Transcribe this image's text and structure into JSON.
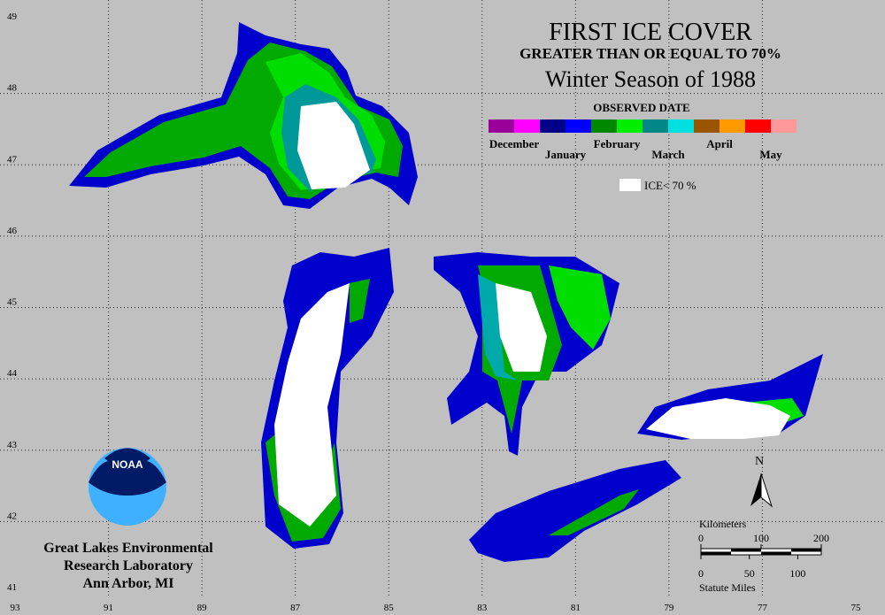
{
  "title": "FIRST ICE COVER",
  "subtitle": "GREATER THAN OR EQUAL TO 70%",
  "season": "Winter Season of 1988",
  "legend": {
    "title": "OBSERVED DATE",
    "months": [
      {
        "name": "December",
        "colors": [
          "#990099",
          "#ff00ff"
        ]
      },
      {
        "name": "January",
        "colors": [
          "#000088",
          "#0000ff"
        ]
      },
      {
        "name": "February",
        "colors": [
          "#008800",
          "#00ee00"
        ]
      },
      {
        "name": "March",
        "colors": [
          "#008888",
          "#00e0e0"
        ]
      },
      {
        "name": "April",
        "colors": [
          "#995500",
          "#ff9900"
        ]
      },
      {
        "name": "May",
        "colors": [
          "#ff0000",
          "#ff9999"
        ]
      }
    ],
    "ice_label": "ICE< 70 %"
  },
  "longitude_ticks": [
    93,
    91,
    89,
    87,
    85,
    83,
    81,
    79,
    77,
    75
  ],
  "latitude_ticks": [
    49,
    48,
    47,
    46,
    45,
    44,
    43,
    42,
    41
  ],
  "north_label": "N",
  "scale": {
    "kilometers": {
      "label": "Kilometers",
      "ticks": [
        0,
        100,
        200
      ]
    },
    "miles": {
      "label": "Statute Miles",
      "ticks": [
        0,
        50,
        100
      ]
    }
  },
  "agency_logo": "NOAA",
  "credit": [
    "Great Lakes Environmental",
    "Research Laboratory",
    "Ann Arbor, MI"
  ]
}
